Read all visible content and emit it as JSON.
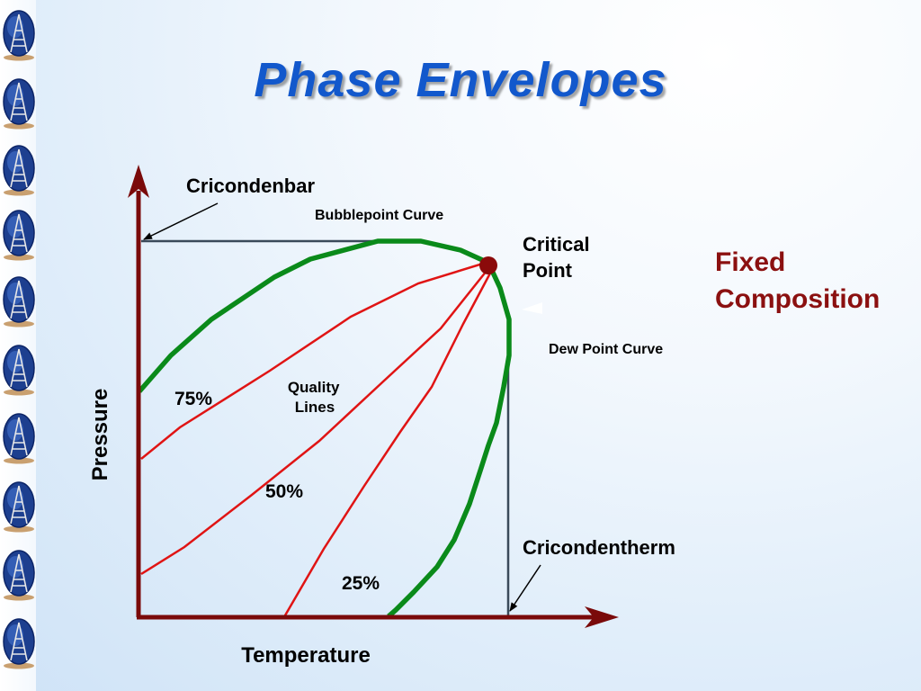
{
  "slide": {
    "title": "Phase Envelopes"
  },
  "labels": {
    "cricondenbar": "Cricondenbar",
    "bubblepoint_curve": "Bubblepoint Curve",
    "critical_point": [
      "Critical",
      "Point"
    ],
    "fixed_composition": [
      "Fixed",
      "Composition"
    ],
    "dew_point_curve": "Dew Point Curve",
    "quality_lines": [
      "Quality",
      "Lines"
    ],
    "cricondentherm": "Cricondentherm",
    "x_axis": "Temperature",
    "y_axis": "Pressure",
    "quality_75": "75%",
    "quality_50": "50%",
    "quality_25": "25%"
  },
  "colors": {
    "title": "#1258cc",
    "axis": "#7a0a0a",
    "envelope": "#0a8a1a",
    "quality_line": "#e01414",
    "guide_line": "#3a4a5a",
    "critical_point": "#8b0a0a",
    "fixed_composition_text": "#8b1010"
  },
  "icons": {
    "logo_strip": "oil-derrick-globe-icon"
  }
}
